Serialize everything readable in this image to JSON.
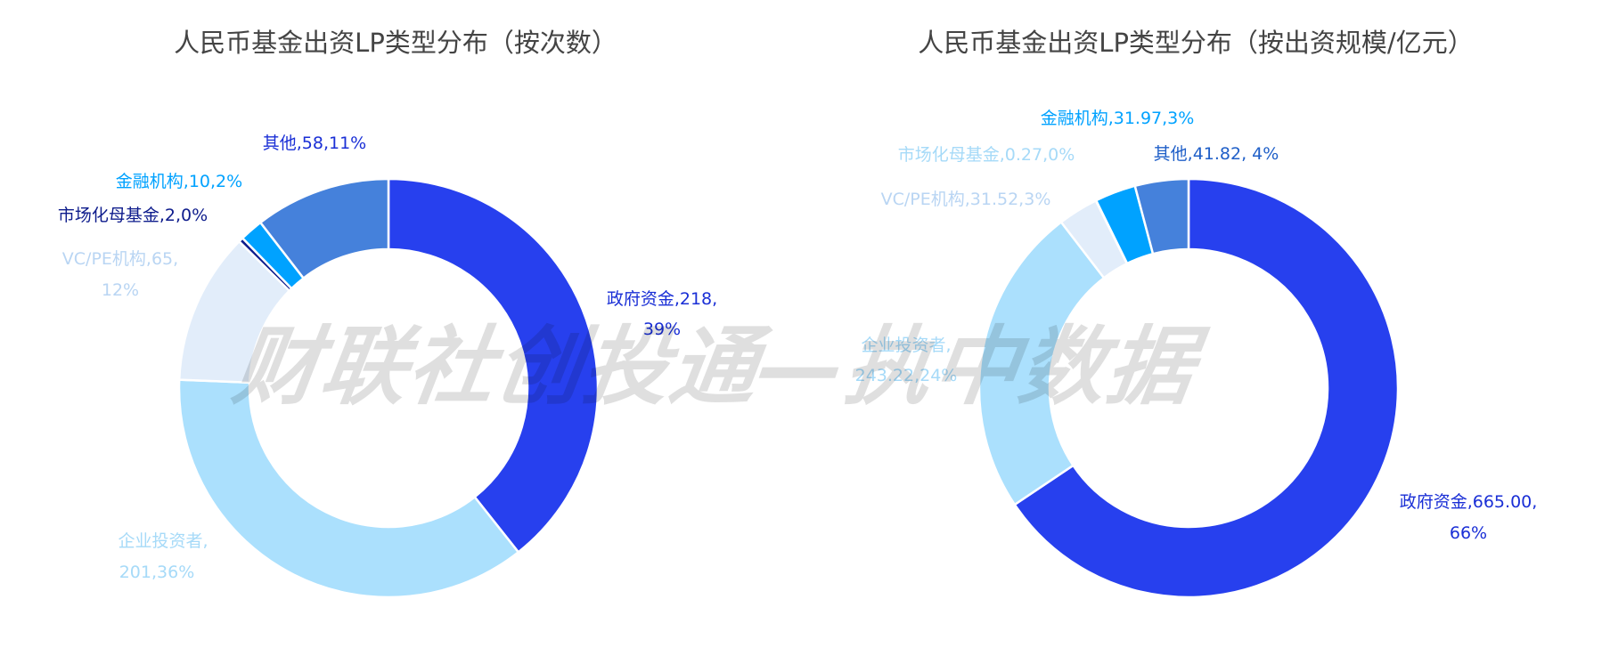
{
  "watermark": "财联社创投通—执中数据",
  "chart_data": [
    {
      "type": "pie",
      "variant": "donut",
      "title": "人民币基金出资LP类型分布（按次数）",
      "start": "top, clockwise",
      "slices": [
        {
          "name": "政府资金",
          "value": 218,
          "percent": "39%",
          "color": "#2740EE",
          "label_color": "#1A2FD6",
          "label_lines": [
            "政府资金,218,",
            "39%"
          ]
        },
        {
          "name": "企业投资者",
          "value": 201,
          "percent": "36%",
          "color": "#ABE0FD",
          "label_color": "#A6DAF8",
          "label_lines": [
            "企业投资者,",
            "201,36%"
          ]
        },
        {
          "name": "VC/PE机构",
          "value": 65,
          "percent": "12%",
          "color": "#E2EDFA",
          "label_color": "#B9D5F3",
          "label_lines": [
            "VC/PE机构,65,",
            "12%"
          ]
        },
        {
          "name": "市场化母基金",
          "value": 2,
          "percent": "0%",
          "color": "#0E1C8C",
          "label_color": "#0E1C8C",
          "label_lines": [
            "市场化母基金,2,0%"
          ]
        },
        {
          "name": "金融机构",
          "value": 10,
          "percent": "2%",
          "color": "#00A2FF",
          "label_color": "#00A2FF",
          "label_lines": [
            "金融机构,10,2%"
          ]
        },
        {
          "name": "其他",
          "value": 58,
          "percent": "11%",
          "color": "#4581DB",
          "label_color": "#1A2FD6",
          "label_lines": [
            "其他,58,11%"
          ]
        }
      ]
    },
    {
      "type": "pie",
      "variant": "donut",
      "title": "人民币基金出资LP类型分布（按出资规模/亿元）",
      "start": "top, clockwise",
      "slices": [
        {
          "name": "政府资金",
          "value": 665.0,
          "percent": "66%",
          "color": "#2740EE",
          "label_color": "#1A2FD6",
          "label_lines": [
            "政府资金,665.00,",
            "66%"
          ]
        },
        {
          "name": "企业投资者",
          "value": 243.22,
          "percent": "24%",
          "color": "#ABE0FD",
          "label_color": "#A6DAF8",
          "label_lines": [
            "企业投资者,",
            "243.22,24%"
          ]
        },
        {
          "name": "VC/PE机构",
          "value": 31.52,
          "percent": "3%",
          "color": "#E2EDFA",
          "label_color": "#B9D5F3",
          "label_lines": [
            "VC/PE机构,31.52,3%"
          ]
        },
        {
          "name": "市场化母基金",
          "value": 0.27,
          "percent": "0%",
          "color": "#ABE0FD",
          "label_color": "#A6DAF8",
          "label_lines": [
            "市场化母基金,0.27,0%"
          ]
        },
        {
          "name": "金融机构",
          "value": 31.97,
          "percent": "3%",
          "color": "#00A2FF",
          "label_color": "#00A2FF",
          "label_lines": [
            "金融机构,31.97,3%"
          ]
        },
        {
          "name": "其他",
          "value": 41.82,
          "percent": "4%",
          "color": "#4581DB",
          "label_color": "#1F5FC8",
          "label_lines": [
            "其他,41.82, 4%"
          ]
        }
      ]
    }
  ]
}
